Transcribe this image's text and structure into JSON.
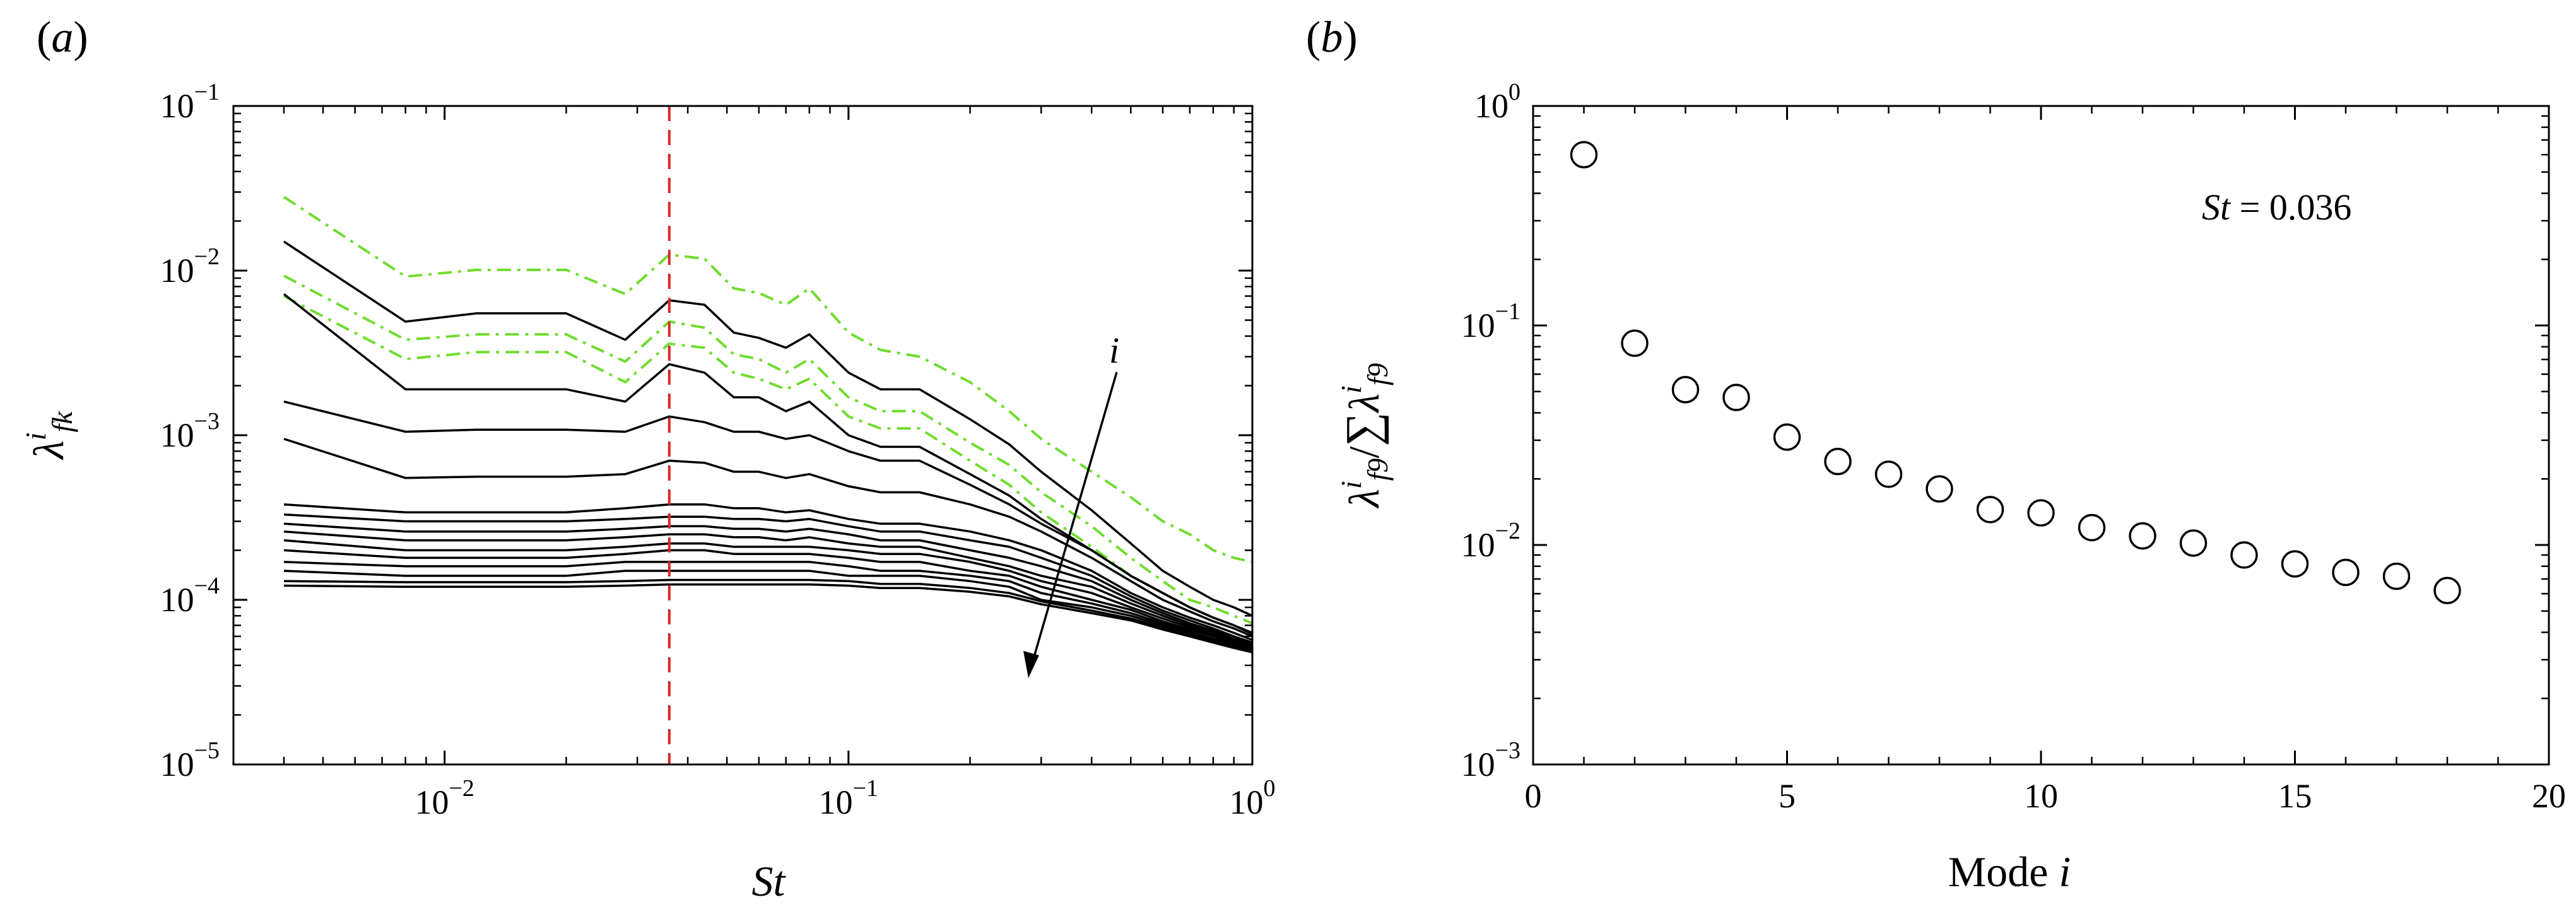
{
  "panel_labels": {
    "a": "(a)",
    "b": "(b)"
  },
  "chart_data": [
    {
      "type": "line",
      "panel": "(a)",
      "xscale": "log",
      "yscale": "log",
      "xlabel": "St",
      "ylabel": "λ^i_fk",
      "xlim": [
        0.003,
        1.0
      ],
      "ylim": [
        1e-05,
        0.1
      ],
      "xticks": [
        {
          "value": 0.01,
          "label": "10",
          "exp": "−2"
        },
        {
          "value": 0.1,
          "label": "10",
          "exp": "−1"
        },
        {
          "value": 1.0,
          "label": "10",
          "exp": "0"
        }
      ],
      "yticks": [
        {
          "value": 1e-05,
          "label": "10",
          "exp": "−5"
        },
        {
          "value": 0.0001,
          "label": "10",
          "exp": "−4"
        },
        {
          "value": 0.001,
          "label": "10",
          "exp": "−3"
        },
        {
          "value": 0.01,
          "label": "10",
          "exp": "−2"
        },
        {
          "value": 0.1,
          "label": "10",
          "exp": "−1"
        }
      ],
      "reference_line": {
        "x": 0.036,
        "color": "#d62728",
        "style": "dashed"
      },
      "arrow_label": "i",
      "series_colors": {
        "black": "#000000",
        "green": "#6fdc2e"
      },
      "x": [
        0.004,
        0.008,
        0.012,
        0.016,
        0.02,
        0.028,
        0.036,
        0.044,
        0.052,
        0.06,
        0.07,
        0.08,
        0.1,
        0.12,
        0.15,
        0.2,
        0.25,
        0.3,
        0.4,
        0.5,
        0.6,
        0.7,
        0.8,
        0.9,
        1.0
      ],
      "series": [
        {
          "style": "green-dashdot",
          "values": [
            0.028,
            0.0092,
            0.0101,
            0.0101,
            0.0101,
            0.0072,
            0.0125,
            0.0118,
            0.0078,
            0.0073,
            0.0062,
            0.0078,
            0.0042,
            0.0033,
            0.003,
            0.0021,
            0.0014,
            0.00095,
            0.0006,
            0.00042,
            0.0003,
            0.00025,
            0.0002,
            0.00018,
            0.00017
          ]
        },
        {
          "style": "black-solid",
          "values": [
            0.015,
            0.0049,
            0.0055,
            0.0055,
            0.0055,
            0.0038,
            0.0066,
            0.0062,
            0.0042,
            0.0039,
            0.0034,
            0.0041,
            0.0024,
            0.0019,
            0.0019,
            0.00125,
            0.00088,
            0.0006,
            0.00035,
            0.00022,
            0.00015,
            0.00012,
            0.0001,
            9e-05,
            8e-05
          ]
        },
        {
          "style": "green-dashdot",
          "values": [
            0.0093,
            0.0038,
            0.0041,
            0.0041,
            0.0041,
            0.0028,
            0.0049,
            0.0045,
            0.0031,
            0.0029,
            0.0024,
            0.0029,
            0.0017,
            0.0014,
            0.0014,
            0.0009,
            0.00066,
            0.00045,
            0.00028,
            0.00018,
            0.00013,
            0.0001,
            9e-05,
            8e-05,
            7.2e-05
          ]
        },
        {
          "style": "green-dashdot",
          "values": [
            0.007,
            0.0029,
            0.0032,
            0.0032,
            0.0032,
            0.0021,
            0.0036,
            0.0034,
            0.0024,
            0.0022,
            0.0019,
            0.0022,
            0.0013,
            0.0011,
            0.0011,
            0.0007,
            0.0005,
            0.00034,
            0.00021,
            0.00014,
            0.00011,
            9e-05,
            7.8e-05,
            7e-05,
            6.2e-05
          ]
        },
        {
          "style": "black-solid",
          "values": [
            0.0072,
            0.0019,
            0.0019,
            0.0019,
            0.0019,
            0.0016,
            0.0027,
            0.0024,
            0.0017,
            0.0017,
            0.0014,
            0.0016,
            0.001,
            0.00085,
            0.00085,
            0.00058,
            0.00043,
            0.00031,
            0.0002,
            0.00014,
            0.00011,
            9e-05,
            7.8e-05,
            7e-05,
            6.3e-05
          ]
        },
        {
          "style": "black-solid",
          "values": [
            0.0016,
            0.00105,
            0.00108,
            0.00108,
            0.00108,
            0.00105,
            0.0013,
            0.0012,
            0.00105,
            0.00105,
            0.00095,
            0.001,
            0.0008,
            0.0007,
            0.0007,
            0.0005,
            0.00038,
            0.00029,
            0.0002,
            0.00014,
            0.00011,
            9e-05,
            7.8e-05,
            7e-05,
            6.2e-05
          ]
        },
        {
          "style": "black-solid",
          "values": [
            0.00095,
            0.00055,
            0.00056,
            0.00056,
            0.00056,
            0.00058,
            0.0007,
            0.00068,
            0.0006,
            0.0006,
            0.00055,
            0.00058,
            0.00049,
            0.00045,
            0.00045,
            0.00038,
            0.00032,
            0.00026,
            0.00018,
            0.00013,
            0.0001,
            8.5e-05,
            7.4e-05,
            6.7e-05,
            6e-05
          ]
        },
        {
          "style": "black-solid",
          "values": [
            0.00038,
            0.00034,
            0.00034,
            0.00034,
            0.00034,
            0.00036,
            0.00038,
            0.00038,
            0.00036,
            0.00036,
            0.00034,
            0.00035,
            0.00031,
            0.00029,
            0.00029,
            0.00026,
            0.00023,
            0.0002,
            0.00015,
            0.00011,
            9e-05,
            7.8e-05,
            7e-05,
            6.3e-05,
            5.7e-05
          ]
        },
        {
          "style": "black-solid",
          "values": [
            0.00033,
            0.0003,
            0.0003,
            0.0003,
            0.0003,
            0.00031,
            0.00032,
            0.00032,
            0.00031,
            0.00031,
            0.0003,
            0.00031,
            0.00028,
            0.00026,
            0.00026,
            0.00023,
            0.00021,
            0.00018,
            0.00014,
            0.000105,
            8.6e-05,
            7.5e-05,
            6.7e-05,
            6e-05,
            5.5e-05
          ]
        },
        {
          "style": "black-solid",
          "values": [
            0.00029,
            0.00026,
            0.00026,
            0.00026,
            0.00026,
            0.00027,
            0.00028,
            0.00028,
            0.00027,
            0.00027,
            0.00026,
            0.00027,
            0.00025,
            0.00023,
            0.00023,
            0.0002,
            0.00018,
            0.00016,
            0.00013,
            0.0001,
            8.3e-05,
            7.2e-05,
            6.5e-05,
            5.8e-05,
            5.4e-05
          ]
        },
        {
          "style": "black-solid",
          "values": [
            0.00026,
            0.00023,
            0.00023,
            0.00023,
            0.00023,
            0.00024,
            0.00025,
            0.00025,
            0.00024,
            0.00024,
            0.00023,
            0.00024,
            0.00022,
            0.00021,
            0.00021,
            0.00018,
            0.00016,
            0.00014,
            0.00012,
            9.5e-05,
            8e-05,
            7e-05,
            6.3e-05,
            5.7e-05,
            5.3e-05
          ]
        },
        {
          "style": "black-solid",
          "values": [
            0.00023,
            0.0002,
            0.0002,
            0.0002,
            0.0002,
            0.00021,
            0.00022,
            0.00022,
            0.00021,
            0.00021,
            0.00021,
            0.00021,
            0.0002,
            0.00019,
            0.00019,
            0.00017,
            0.00015,
            0.00013,
            0.00011,
            9e-05,
            7.7e-05,
            6.8e-05,
            6.1e-05,
            5.6e-05,
            5.2e-05
          ]
        },
        {
          "style": "black-solid",
          "values": [
            0.0002,
            0.00018,
            0.00018,
            0.00018,
            0.00018,
            0.00019,
            0.0002,
            0.0002,
            0.00019,
            0.00019,
            0.00019,
            0.00019,
            0.00018,
            0.00017,
            0.00017,
            0.00015,
            0.00014,
            0.00012,
            0.0001,
            8.7e-05,
            7.4e-05,
            6.6e-05,
            6e-05,
            5.5e-05,
            5.1e-05
          ]
        },
        {
          "style": "black-solid",
          "values": [
            0.00017,
            0.00016,
            0.00016,
            0.00016,
            0.00016,
            0.00017,
            0.00017,
            0.00017,
            0.00017,
            0.00017,
            0.00017,
            0.00017,
            0.00016,
            0.00015,
            0.00015,
            0.00014,
            0.00013,
            0.00011,
            9.5e-05,
            8.3e-05,
            7.2e-05,
            6.4e-05,
            5.8e-05,
            5.4e-05,
            5e-05
          ]
        },
        {
          "style": "black-solid",
          "values": [
            0.00015,
            0.00014,
            0.00014,
            0.00014,
            0.00014,
            0.00015,
            0.00015,
            0.00015,
            0.00015,
            0.00015,
            0.00015,
            0.00015,
            0.00014,
            0.00014,
            0.00014,
            0.00013,
            0.00012,
            0.0001,
            9e-05,
            8e-05,
            7e-05,
            6.3e-05,
            5.7e-05,
            5.3e-05,
            5e-05
          ]
        },
        {
          "style": "black-solid",
          "values": [
            0.00013,
            0.000128,
            0.000128,
            0.000128,
            0.000128,
            0.00013,
            0.000132,
            0.000132,
            0.000132,
            0.000132,
            0.000132,
            0.000132,
            0.00013,
            0.000125,
            0.000125,
            0.000118,
            0.00011,
            9.8e-05,
            8.6e-05,
            7.7e-05,
            6.8e-05,
            6.1e-05,
            5.6e-05,
            5.2e-05,
            4.9e-05
          ]
        },
        {
          "style": "black-solid",
          "values": [
            0.000122,
            0.00012,
            0.00012,
            0.00012,
            0.00012,
            0.000122,
            0.000124,
            0.000124,
            0.000124,
            0.000124,
            0.000124,
            0.000124,
            0.000122,
            0.000118,
            0.000118,
            0.000112,
            0.000105,
            9.4e-05,
            8.3e-05,
            7.5e-05,
            6.6e-05,
            6e-05,
            5.5e-05,
            5.1e-05,
            4.8e-05
          ]
        }
      ]
    },
    {
      "type": "scatter",
      "panel": "(b)",
      "xscale": "linear",
      "yscale": "log",
      "xlabel": "Mode i",
      "ylabel": "λ^i_f9 / Σ λ^i_f9",
      "xlim": [
        0,
        20
      ],
      "ylim": [
        0.001,
        1
      ],
      "xticks": [
        {
          "value": 0,
          "label": "0"
        },
        {
          "value": 5,
          "label": "5"
        },
        {
          "value": 10,
          "label": "10"
        },
        {
          "value": 15,
          "label": "15"
        },
        {
          "value": 20,
          "label": "20"
        }
      ],
      "yticks": [
        {
          "value": 0.001,
          "label": "10",
          "exp": "−3"
        },
        {
          "value": 0.01,
          "label": "10",
          "exp": "−2"
        },
        {
          "value": 0.1,
          "label": "10",
          "exp": "−1"
        },
        {
          "value": 1,
          "label": "10",
          "exp": "0"
        }
      ],
      "annotation": {
        "var": "St",
        "text": " = 0.036"
      },
      "marker": "open-circle",
      "x": [
        1,
        2,
        3,
        4,
        5,
        6,
        7,
        8,
        9,
        10,
        11,
        12,
        13,
        14,
        15,
        16,
        17,
        18
      ],
      "values": [
        0.6,
        0.083,
        0.051,
        0.047,
        0.031,
        0.024,
        0.021,
        0.018,
        0.0145,
        0.014,
        0.012,
        0.011,
        0.0102,
        0.009,
        0.0082,
        0.0075,
        0.0072,
        0.0062
      ]
    }
  ]
}
